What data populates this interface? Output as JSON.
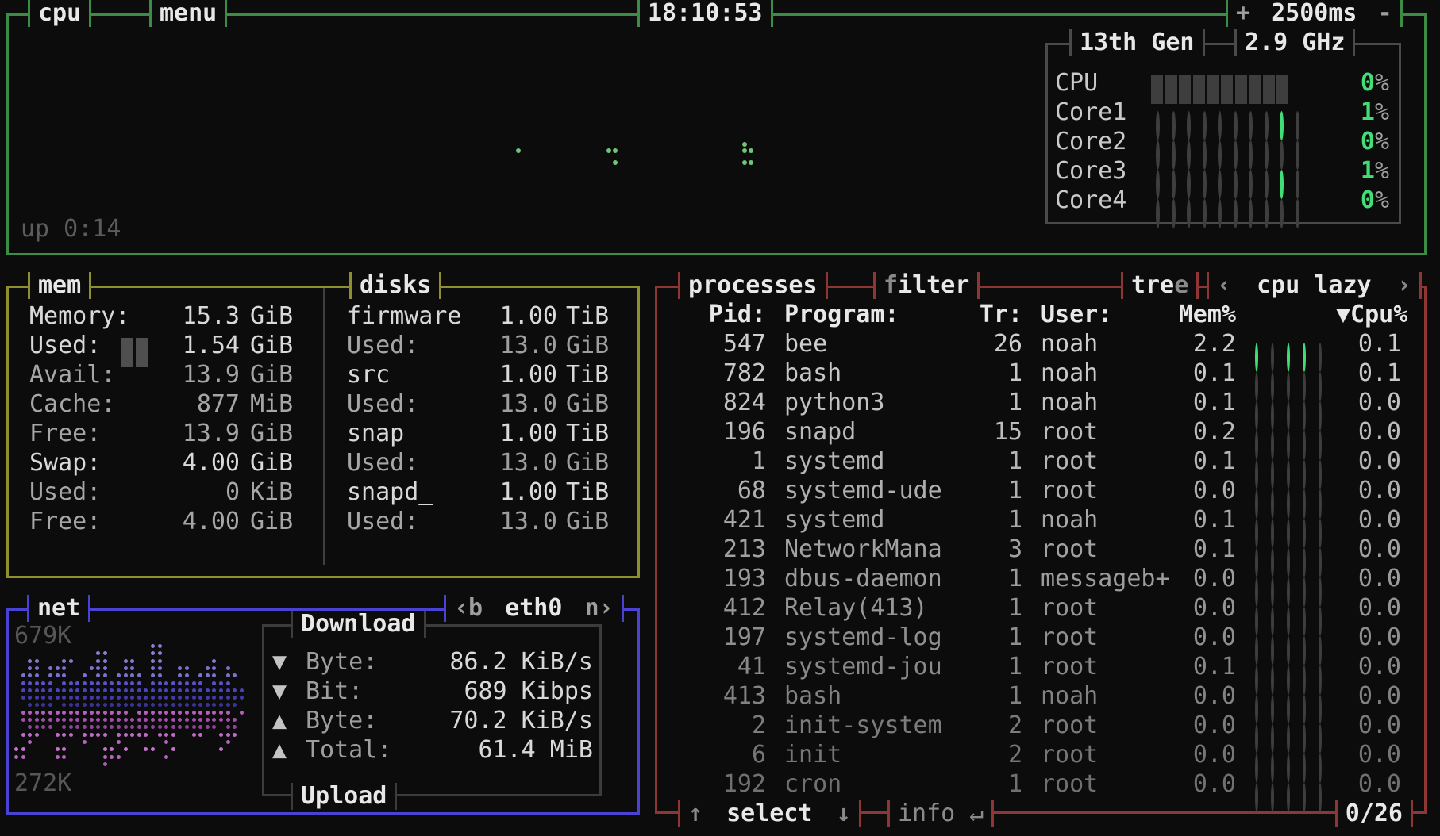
{
  "cpu": {
    "title": "cpu",
    "menu": "menu",
    "clock": "18:10:53",
    "interval": {
      "plus": "+",
      "value": "2500ms",
      "minus": "-"
    },
    "uptime": "up 0:14",
    "inner": {
      "model": "13th Gen",
      "freq": "2.9 GHz",
      "rows": [
        {
          "label": "CPU",
          "pct": "0",
          "meter": "blocks"
        },
        {
          "label": "Core1",
          "pct": "1",
          "meter": "dots",
          "green_dot": 8
        },
        {
          "label": "Core2",
          "pct": "0",
          "meter": "dots",
          "green_dot": -1
        },
        {
          "label": "Core3",
          "pct": "1",
          "meter": "dots",
          "green_dot": 8
        },
        {
          "label": "Core4",
          "pct": "0",
          "meter": "dots",
          "green_dot": -1
        }
      ]
    },
    "graph_dots": [
      [
        639,
        167
      ],
      [
        753,
        167
      ],
      [
        761,
        167
      ],
      [
        761,
        182
      ],
      [
        924,
        159
      ],
      [
        924,
        167
      ],
      [
        932,
        167
      ],
      [
        924,
        182
      ],
      [
        932,
        182
      ]
    ]
  },
  "mem": {
    "title": "mem",
    "rows": [
      {
        "label": "Memory:",
        "value": "15.3",
        "unit": "GiB",
        "bright": true
      },
      {
        "label": "Used:",
        "value": "1.54",
        "unit": "GiB",
        "bright": true,
        "meter": 2
      },
      {
        "label": "Avail:",
        "value": "13.9",
        "unit": "GiB",
        "bright": false
      },
      {
        "label": "Cache:",
        "value": "877",
        "unit": "MiB",
        "bright": false
      },
      {
        "label": "Free:",
        "value": "13.9",
        "unit": "GiB",
        "bright": false
      },
      {
        "label": "Swap:",
        "value": "4.00",
        "unit": "GiB",
        "bright": true
      },
      {
        "label": "Used:",
        "value": "0",
        "unit": "KiB",
        "bright": false
      },
      {
        "label": "Free:",
        "value": "4.00",
        "unit": "GiB",
        "bright": false
      }
    ]
  },
  "disks": {
    "title": "disks",
    "rows": [
      {
        "name": "firmware",
        "value": "1.00",
        "unit": "TiB",
        "used": false
      },
      {
        "name": "Used:",
        "value": "13.0",
        "unit": "GiB",
        "used": true
      },
      {
        "name": "src",
        "value": "1.00",
        "unit": "TiB",
        "used": false
      },
      {
        "name": "Used:",
        "value": "13.0",
        "unit": "GiB",
        "used": true
      },
      {
        "name": "snap",
        "value": "1.00",
        "unit": "TiB",
        "used": false
      },
      {
        "name": "Used:",
        "value": "13.0",
        "unit": "GiB",
        "used": true
      },
      {
        "name": "snapd_",
        "value": "1.00",
        "unit": "TiB",
        "used": false
      },
      {
        "name": "Used:",
        "value": "13.0",
        "unit": "GiB",
        "used": true
      }
    ]
  },
  "net": {
    "title": "net",
    "device": {
      "prev": "‹b",
      "name": "eth0",
      "next": "n›"
    },
    "scale_top": "679K",
    "scale_bottom": "272K",
    "io": {
      "title": "Download",
      "upload_title": "Upload",
      "rows": [
        {
          "arrow": "▼",
          "label": "Byte:",
          "value": "86.2 KiB/s"
        },
        {
          "arrow": "▼",
          "label": "Bit:",
          "value": "689 Kibps"
        },
        {
          "arrow": "▲",
          "label": "Byte:",
          "value": "70.2 KiB/s"
        },
        {
          "arrow": "▲",
          "label": "Total:",
          "value": "61.4 MiB"
        }
      ]
    },
    "graph": {
      "rows": [
        {
          "c": "#8a7fd8",
          "bits": "....................##............"
        },
        {
          "c": "#8a7fd8",
          "bits": "............##......##............"
        },
        {
          "c": "#837ad4",
          "bits": "..##...##...##..##..##.......#...."
        },
        {
          "c": "#7b72d0",
          "bits": "..##.###...###..##..##..##..##.#.."
        },
        {
          "c": "#7b72d0",
          "bits": ".###.###..#.##.####.##..##.###.##."
        },
        {
          "c": "#5a52cc",
          "bits": ".#####.############.########.###.."
        },
        {
          "c": "#4b43bd",
          "bits": ".#################################"
        },
        {
          "c": "#4239ab",
          "bits": ".#################################"
        },
        {
          "c": "#3a3398",
          "bits": "..####.##########################."
        },
        {
          "c": "#b75ec0",
          "bits": ".################.##############.#"
        },
        {
          "c": "#a54dac",
          "bits": ".################################."
        },
        {
          "c": "#91429c",
          "bits": "..####.#######################.##."
        },
        {
          "c": "#c169c6",
          "bits": ".###..###.####.#####.###..##..###."
        },
        {
          "c": "#b863c0",
          "bits": "..#.......#....#......#........#.."
        },
        {
          "c": "#c473ca",
          "bits": "##....##.....##.#..##..#......#..."
        },
        {
          "c": "#b863c0",
          "bits": "##....##.....###......#..........."
        },
        {
          "c": "#a85bb4",
          "bits": ".............#...................."
        }
      ]
    }
  },
  "proc": {
    "title": "processes",
    "filter": {
      "hotkey": "f",
      "rest": "ilter"
    },
    "tree": {
      "rest": "tre",
      "hotkey": "e"
    },
    "sort": {
      "left": "‹",
      "value": "cpu lazy",
      "right": "›"
    },
    "header": {
      "pid": "Pid:",
      "program": "Program:",
      "tr": "Tr:",
      "user": "User:",
      "mem": "Mem%",
      "cpu": "▼Cpu%"
    },
    "rows": [
      {
        "pid": "547",
        "program": "bee",
        "tr": "26",
        "user": "noah",
        "mem": "2.2",
        "cpu": "0.1",
        "dots": [
          1,
          0,
          1,
          1,
          0
        ]
      },
      {
        "pid": "782",
        "program": "bash",
        "tr": "1",
        "user": "noah",
        "mem": "0.1",
        "cpu": "0.1",
        "dots": [
          0,
          0,
          0,
          0,
          0
        ]
      },
      {
        "pid": "824",
        "program": "python3",
        "tr": "1",
        "user": "noah",
        "mem": "0.1",
        "cpu": "0.0",
        "dots": [
          0,
          0,
          0,
          0,
          0
        ]
      },
      {
        "pid": "196",
        "program": "snapd",
        "tr": "15",
        "user": "root",
        "mem": "0.2",
        "cpu": "0.0",
        "dots": [
          0,
          0,
          0,
          0,
          0
        ]
      },
      {
        "pid": "1",
        "program": "systemd",
        "tr": "1",
        "user": "root",
        "mem": "0.1",
        "cpu": "0.0",
        "dots": [
          0,
          0,
          0,
          0,
          0
        ]
      },
      {
        "pid": "68",
        "program": "systemd-ude",
        "tr": "1",
        "user": "root",
        "mem": "0.0",
        "cpu": "0.0",
        "dots": [
          0,
          0,
          0,
          0,
          0
        ]
      },
      {
        "pid": "421",
        "program": "systemd",
        "tr": "1",
        "user": "noah",
        "mem": "0.1",
        "cpu": "0.0",
        "dots": [
          0,
          0,
          0,
          0,
          0
        ]
      },
      {
        "pid": "213",
        "program": "NetworkMana",
        "tr": "3",
        "user": "root",
        "mem": "0.1",
        "cpu": "0.0",
        "dots": [
          0,
          0,
          0,
          0,
          0
        ]
      },
      {
        "pid": "193",
        "program": "dbus-daemon",
        "tr": "1",
        "user": "messageb+",
        "mem": "0.0",
        "cpu": "0.0",
        "dots": [
          0,
          0,
          0,
          0,
          0
        ]
      },
      {
        "pid": "412",
        "program": "Relay(413)",
        "tr": "1",
        "user": "root",
        "mem": "0.0",
        "cpu": "0.0",
        "dots": [
          0,
          0,
          0,
          0,
          0
        ]
      },
      {
        "pid": "197",
        "program": "systemd-log",
        "tr": "1",
        "user": "root",
        "mem": "0.0",
        "cpu": "0.0",
        "dots": [
          0,
          0,
          0,
          0,
          0
        ]
      },
      {
        "pid": "41",
        "program": "systemd-jou",
        "tr": "1",
        "user": "root",
        "mem": "0.1",
        "cpu": "0.0",
        "dots": [
          0,
          0,
          0,
          0,
          0
        ]
      },
      {
        "pid": "413",
        "program": "bash",
        "tr": "1",
        "user": "noah",
        "mem": "0.0",
        "cpu": "0.0",
        "dots": [
          0,
          0,
          0,
          0,
          0
        ]
      },
      {
        "pid": "2",
        "program": "init-system",
        "tr": "2",
        "user": "root",
        "mem": "0.0",
        "cpu": "0.0",
        "dots": [
          0,
          0,
          0,
          0,
          0
        ]
      },
      {
        "pid": "6",
        "program": "init",
        "tr": "2",
        "user": "root",
        "mem": "0.0",
        "cpu": "0.0",
        "dots": [
          0,
          0,
          0,
          0,
          0
        ]
      },
      {
        "pid": "192",
        "program": "cron",
        "tr": "1",
        "user": "root",
        "mem": "0.0",
        "cpu": "0.0",
        "dots": [
          0,
          0,
          0,
          0,
          0
        ]
      }
    ],
    "footer": {
      "up": "↑",
      "select": "select",
      "down": "↓",
      "info": "info ↵",
      "count": "0/26"
    }
  },
  "colors": {
    "cpu_border": "#3d8c46",
    "mem_border": "#8f8f2e",
    "net_border": "#4a42d2",
    "proc_border": "#8e3636",
    "accent_green": "#42dd76",
    "meter_gray": "#3e3e3e"
  }
}
